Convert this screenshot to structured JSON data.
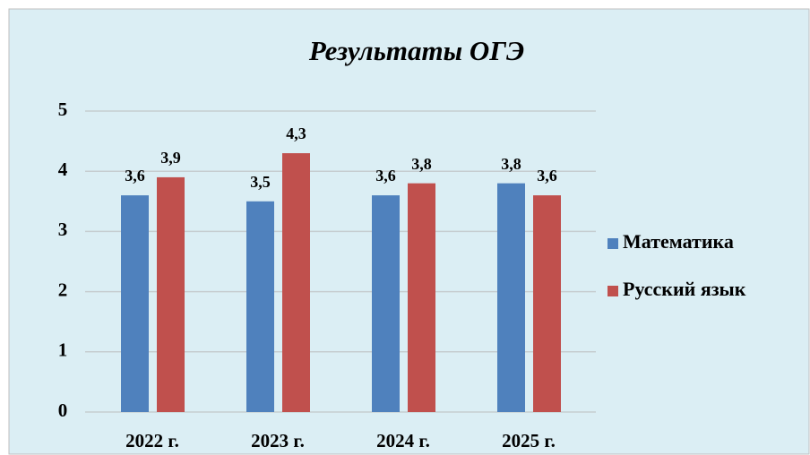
{
  "chart_data": {
    "type": "bar",
    "title": "Результаты ОГЭ",
    "categories": [
      "2022 г.",
      "2023 г.",
      "2024 г.",
      "2025 г."
    ],
    "series": [
      {
        "name": "Математика",
        "color": "#4f81bd",
        "values": [
          3.6,
          3.5,
          3.6,
          3.8
        ],
        "value_labels": [
          "3,6",
          "3,5",
          "3,6",
          "3,8"
        ]
      },
      {
        "name": "Русский язык",
        "color": "#c0504d",
        "values": [
          3.9,
          4.3,
          3.8,
          3.6
        ],
        "value_labels": [
          "3,9",
          "4,3",
          "3,8",
          "3,6"
        ]
      }
    ],
    "ylim": [
      0,
      5
    ],
    "yticks": [
      0,
      1,
      2,
      3,
      4,
      5
    ],
    "grid": true,
    "legend": "right"
  }
}
